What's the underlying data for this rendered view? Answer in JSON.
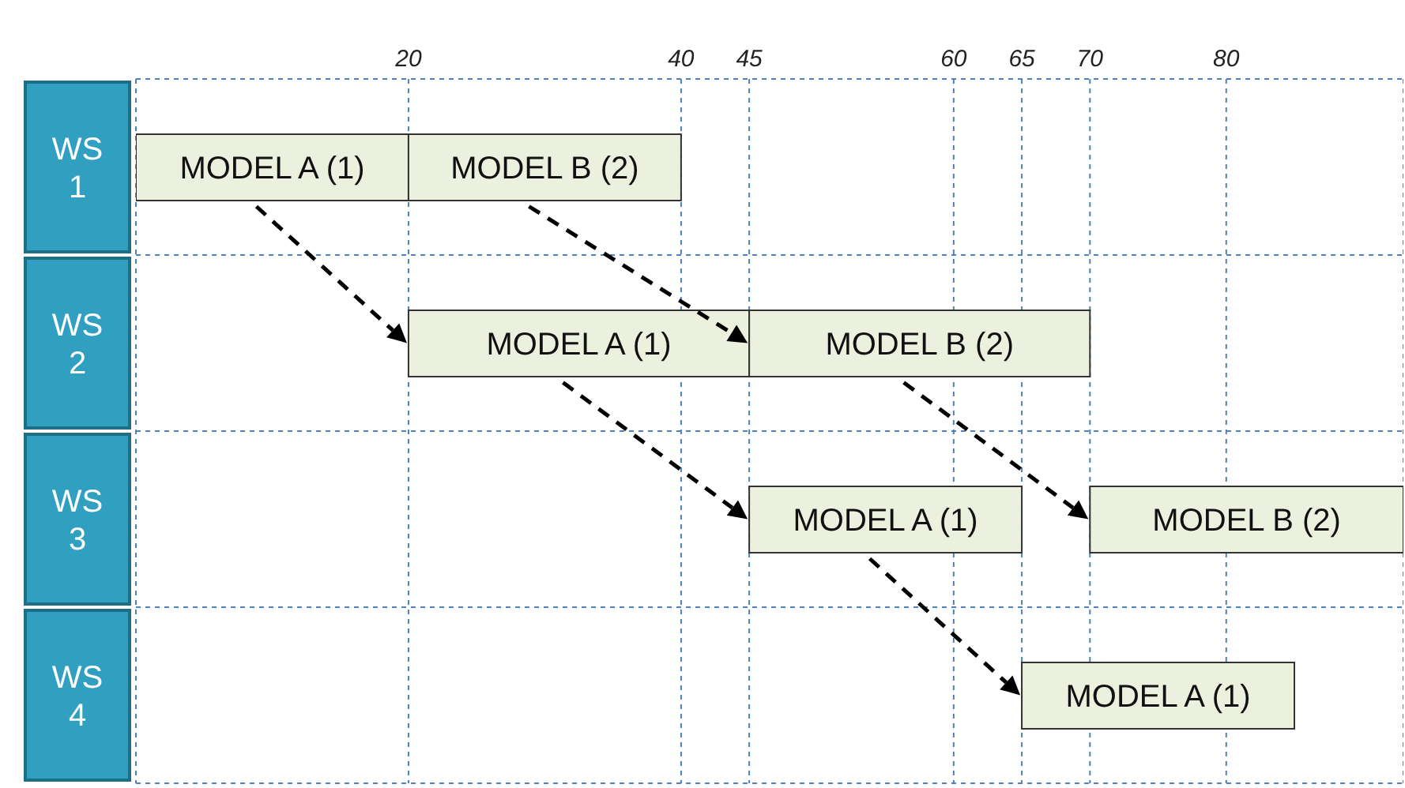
{
  "chart_data": {
    "type": "bar",
    "orientation": "horizontal",
    "categories": [
      "WS 1",
      "WS 2",
      "WS 3",
      "WS 4"
    ],
    "series": [
      {
        "name": "MODEL A (1)",
        "color": "#ebf1de",
        "base": [
          0,
          20,
          45,
          65
        ],
        "values": [
          20,
          25,
          20,
          20
        ]
      },
      {
        "name": "MODEL B (2)",
        "color": "#ebf1de",
        "base": [
          20,
          45,
          70,
          null
        ],
        "values": [
          20,
          25,
          23,
          null
        ]
      }
    ],
    "xlim": [
      0,
      93
    ],
    "xticks": [
      20,
      40,
      45,
      60,
      65,
      70,
      80
    ],
    "grid": true
  }
}
